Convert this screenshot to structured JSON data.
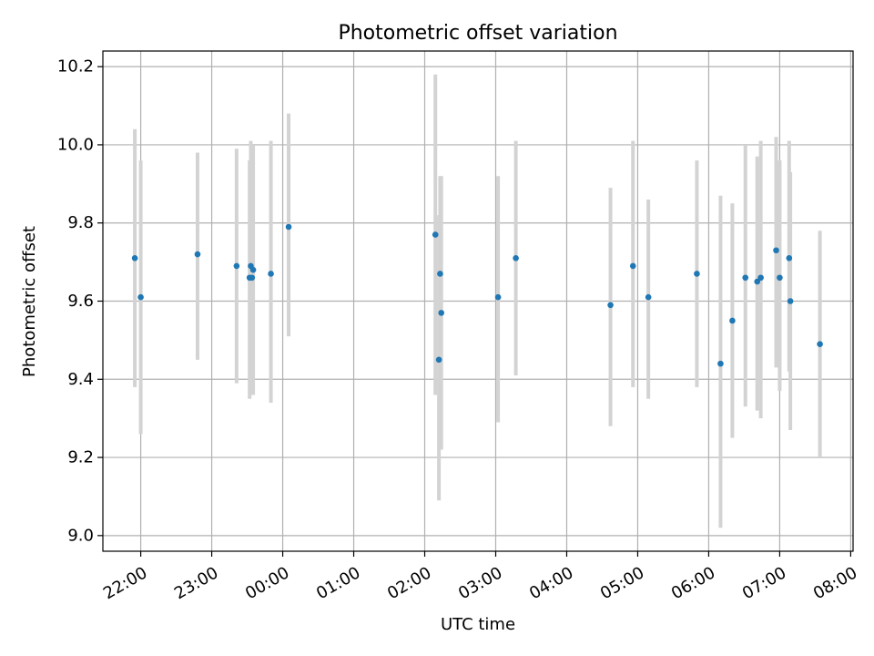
{
  "chart_data": {
    "type": "scatter",
    "title": "Photometric offset variation",
    "xlabel": "UTC time",
    "ylabel": "Photometric offset",
    "ylim": [
      8.96,
      10.24
    ],
    "xlim": [
      "21:28",
      "08:02"
    ],
    "grid": true,
    "legend": "none",
    "x_tick_labels": [
      "22:00",
      "23:00",
      "00:00",
      "01:00",
      "02:00",
      "03:00",
      "04:00",
      "05:00",
      "06:00",
      "07:00",
      "08:00"
    ],
    "y_tick_labels": [
      "9.0",
      "9.2",
      "9.4",
      "9.6",
      "9.8",
      "10.0",
      "10.2"
    ],
    "colors": {
      "point": "#1f77b4",
      "errorbar": "#d3d3d3",
      "grid": "#b0b0b0"
    },
    "points": [
      {
        "t": "21:55",
        "y": 9.71,
        "lo": 9.38,
        "hi": 10.04
      },
      {
        "t": "22:00",
        "y": 9.61,
        "lo": 9.26,
        "hi": 9.96
      },
      {
        "t": "22:48",
        "y": 9.72,
        "lo": 9.45,
        "hi": 9.98
      },
      {
        "t": "23:21",
        "y": 9.69,
        "lo": 9.39,
        "hi": 9.99
      },
      {
        "t": "23:32",
        "y": 9.66,
        "lo": 9.35,
        "hi": 9.96
      },
      {
        "t": "23:33",
        "y": 9.69,
        "lo": 9.37,
        "hi": 10.01
      },
      {
        "t": "23:34",
        "y": 9.66,
        "lo": 9.36,
        "hi": 10.0
      },
      {
        "t": "23:35",
        "y": 9.68,
        "lo": 9.36,
        "hi": 10.0
      },
      {
        "t": "23:50",
        "y": 9.67,
        "lo": 9.34,
        "hi": 10.01
      },
      {
        "t": "00:05",
        "y": 9.79,
        "lo": 9.51,
        "hi": 10.08
      },
      {
        "t": "02:09",
        "y": 9.77,
        "lo": 9.36,
        "hi": 10.18
      },
      {
        "t": "02:12",
        "y": 9.45,
        "lo": 9.09,
        "hi": 9.82
      },
      {
        "t": "02:13",
        "y": 9.67,
        "lo": 9.42,
        "hi": 9.92
      },
      {
        "t": "02:14",
        "y": 9.57,
        "lo": 9.22,
        "hi": 9.92
      },
      {
        "t": "03:02",
        "y": 9.61,
        "lo": 9.29,
        "hi": 9.92
      },
      {
        "t": "03:17",
        "y": 9.71,
        "lo": 9.41,
        "hi": 10.01
      },
      {
        "t": "04:37",
        "y": 9.59,
        "lo": 9.28,
        "hi": 9.89
      },
      {
        "t": "04:56",
        "y": 9.69,
        "lo": 9.38,
        "hi": 10.01
      },
      {
        "t": "05:09",
        "y": 9.61,
        "lo": 9.35,
        "hi": 9.86
      },
      {
        "t": "05:50",
        "y": 9.67,
        "lo": 9.38,
        "hi": 9.96
      },
      {
        "t": "06:10",
        "y": 9.44,
        "lo": 9.02,
        "hi": 9.87
      },
      {
        "t": "06:20",
        "y": 9.55,
        "lo": 9.25,
        "hi": 9.85
      },
      {
        "t": "06:31",
        "y": 9.66,
        "lo": 9.33,
        "hi": 10.0
      },
      {
        "t": "06:41",
        "y": 9.65,
        "lo": 9.32,
        "hi": 9.97
      },
      {
        "t": "06:44",
        "y": 9.66,
        "lo": 9.3,
        "hi": 10.01
      },
      {
        "t": "06:57",
        "y": 9.73,
        "lo": 9.43,
        "hi": 10.02
      },
      {
        "t": "07:00",
        "y": 9.66,
        "lo": 9.37,
        "hi": 9.96
      },
      {
        "t": "07:08",
        "y": 9.71,
        "lo": 9.42,
        "hi": 10.01
      },
      {
        "t": "07:09",
        "y": 9.6,
        "lo": 9.27,
        "hi": 9.93
      },
      {
        "t": "07:34",
        "y": 9.49,
        "lo": 9.2,
        "hi": 9.78
      }
    ]
  }
}
